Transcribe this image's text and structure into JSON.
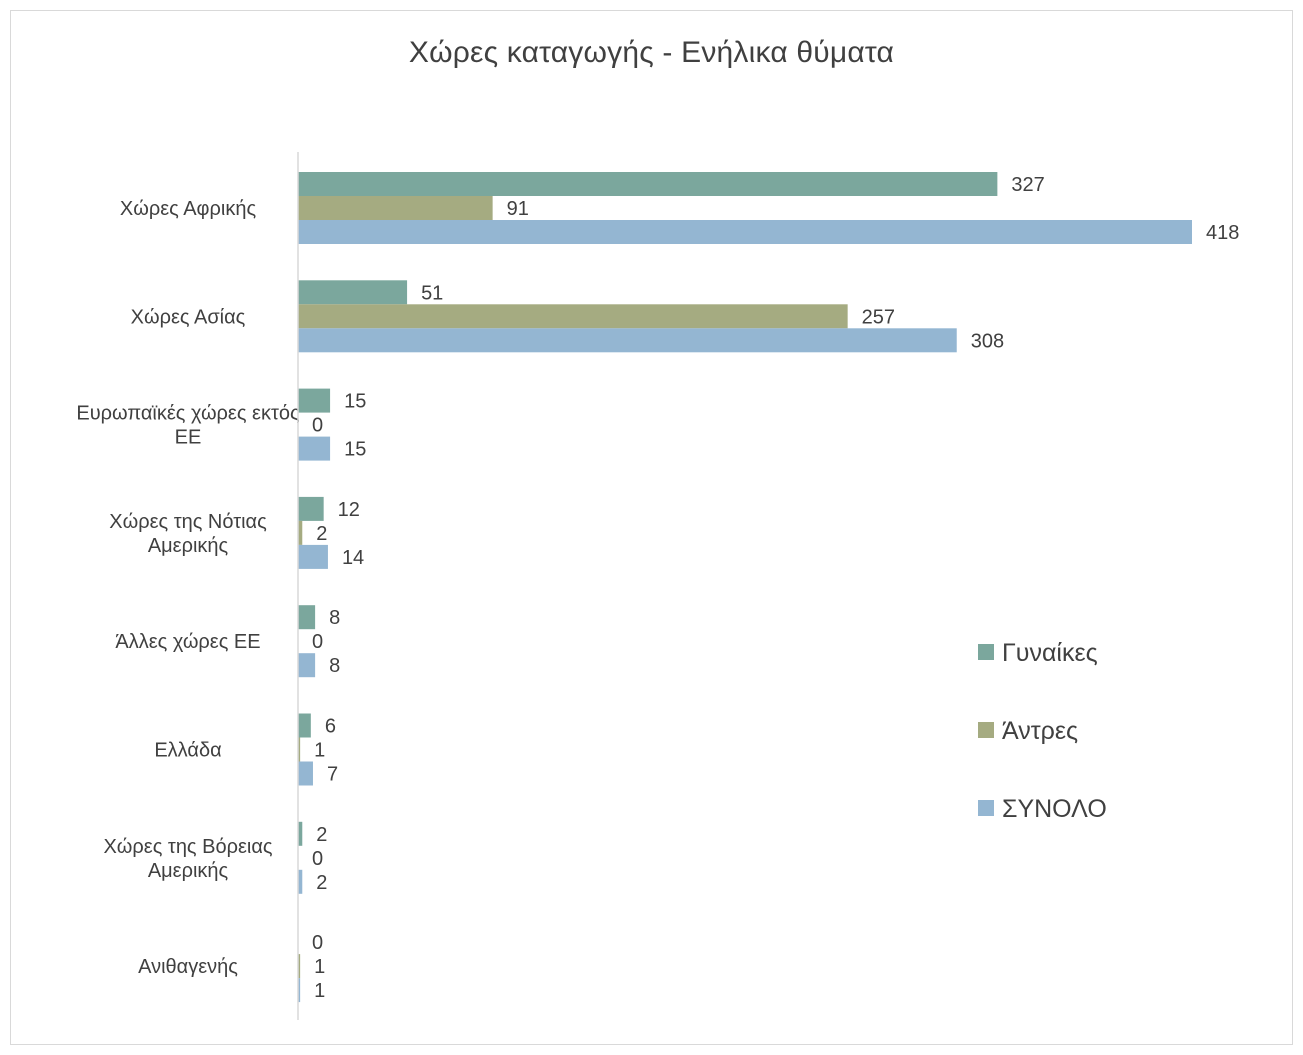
{
  "chart_data": {
    "type": "bar",
    "orientation": "horizontal",
    "title": "Χώρες καταγωγής - Ενήλικα θύματα",
    "categories": [
      [
        "Χώρες Αφρικής"
      ],
      [
        "Χώρες Ασίας"
      ],
      [
        "Ευρωπαϊκές χώρες εκτός",
        "ΕΕ"
      ],
      [
        "Χώρες της Νότιας",
        "Αμερικής"
      ],
      [
        "Άλλες χώρες ΕΕ"
      ],
      [
        "Ελλάδα"
      ],
      [
        "Χώρες της Βόρειας",
        "Αμερικής"
      ],
      [
        "Ανιθαγενής"
      ]
    ],
    "series": [
      {
        "name": "Γυναίκες",
        "color": "#7ba79d",
        "values": [
          327,
          51,
          15,
          12,
          8,
          6,
          2,
          0
        ]
      },
      {
        "name": "Άντρες",
        "color": "#a5ab81",
        "values": [
          91,
          257,
          0,
          2,
          0,
          1,
          0,
          1
        ]
      },
      {
        "name": "ΣΥΝΟΛΟ",
        "color": "#94b6d2",
        "values": [
          418,
          308,
          15,
          14,
          8,
          7,
          2,
          1
        ]
      }
    ],
    "xlim": [
      0,
      420
    ],
    "grid": false,
    "data_labels": true,
    "legend_position": "right"
  }
}
